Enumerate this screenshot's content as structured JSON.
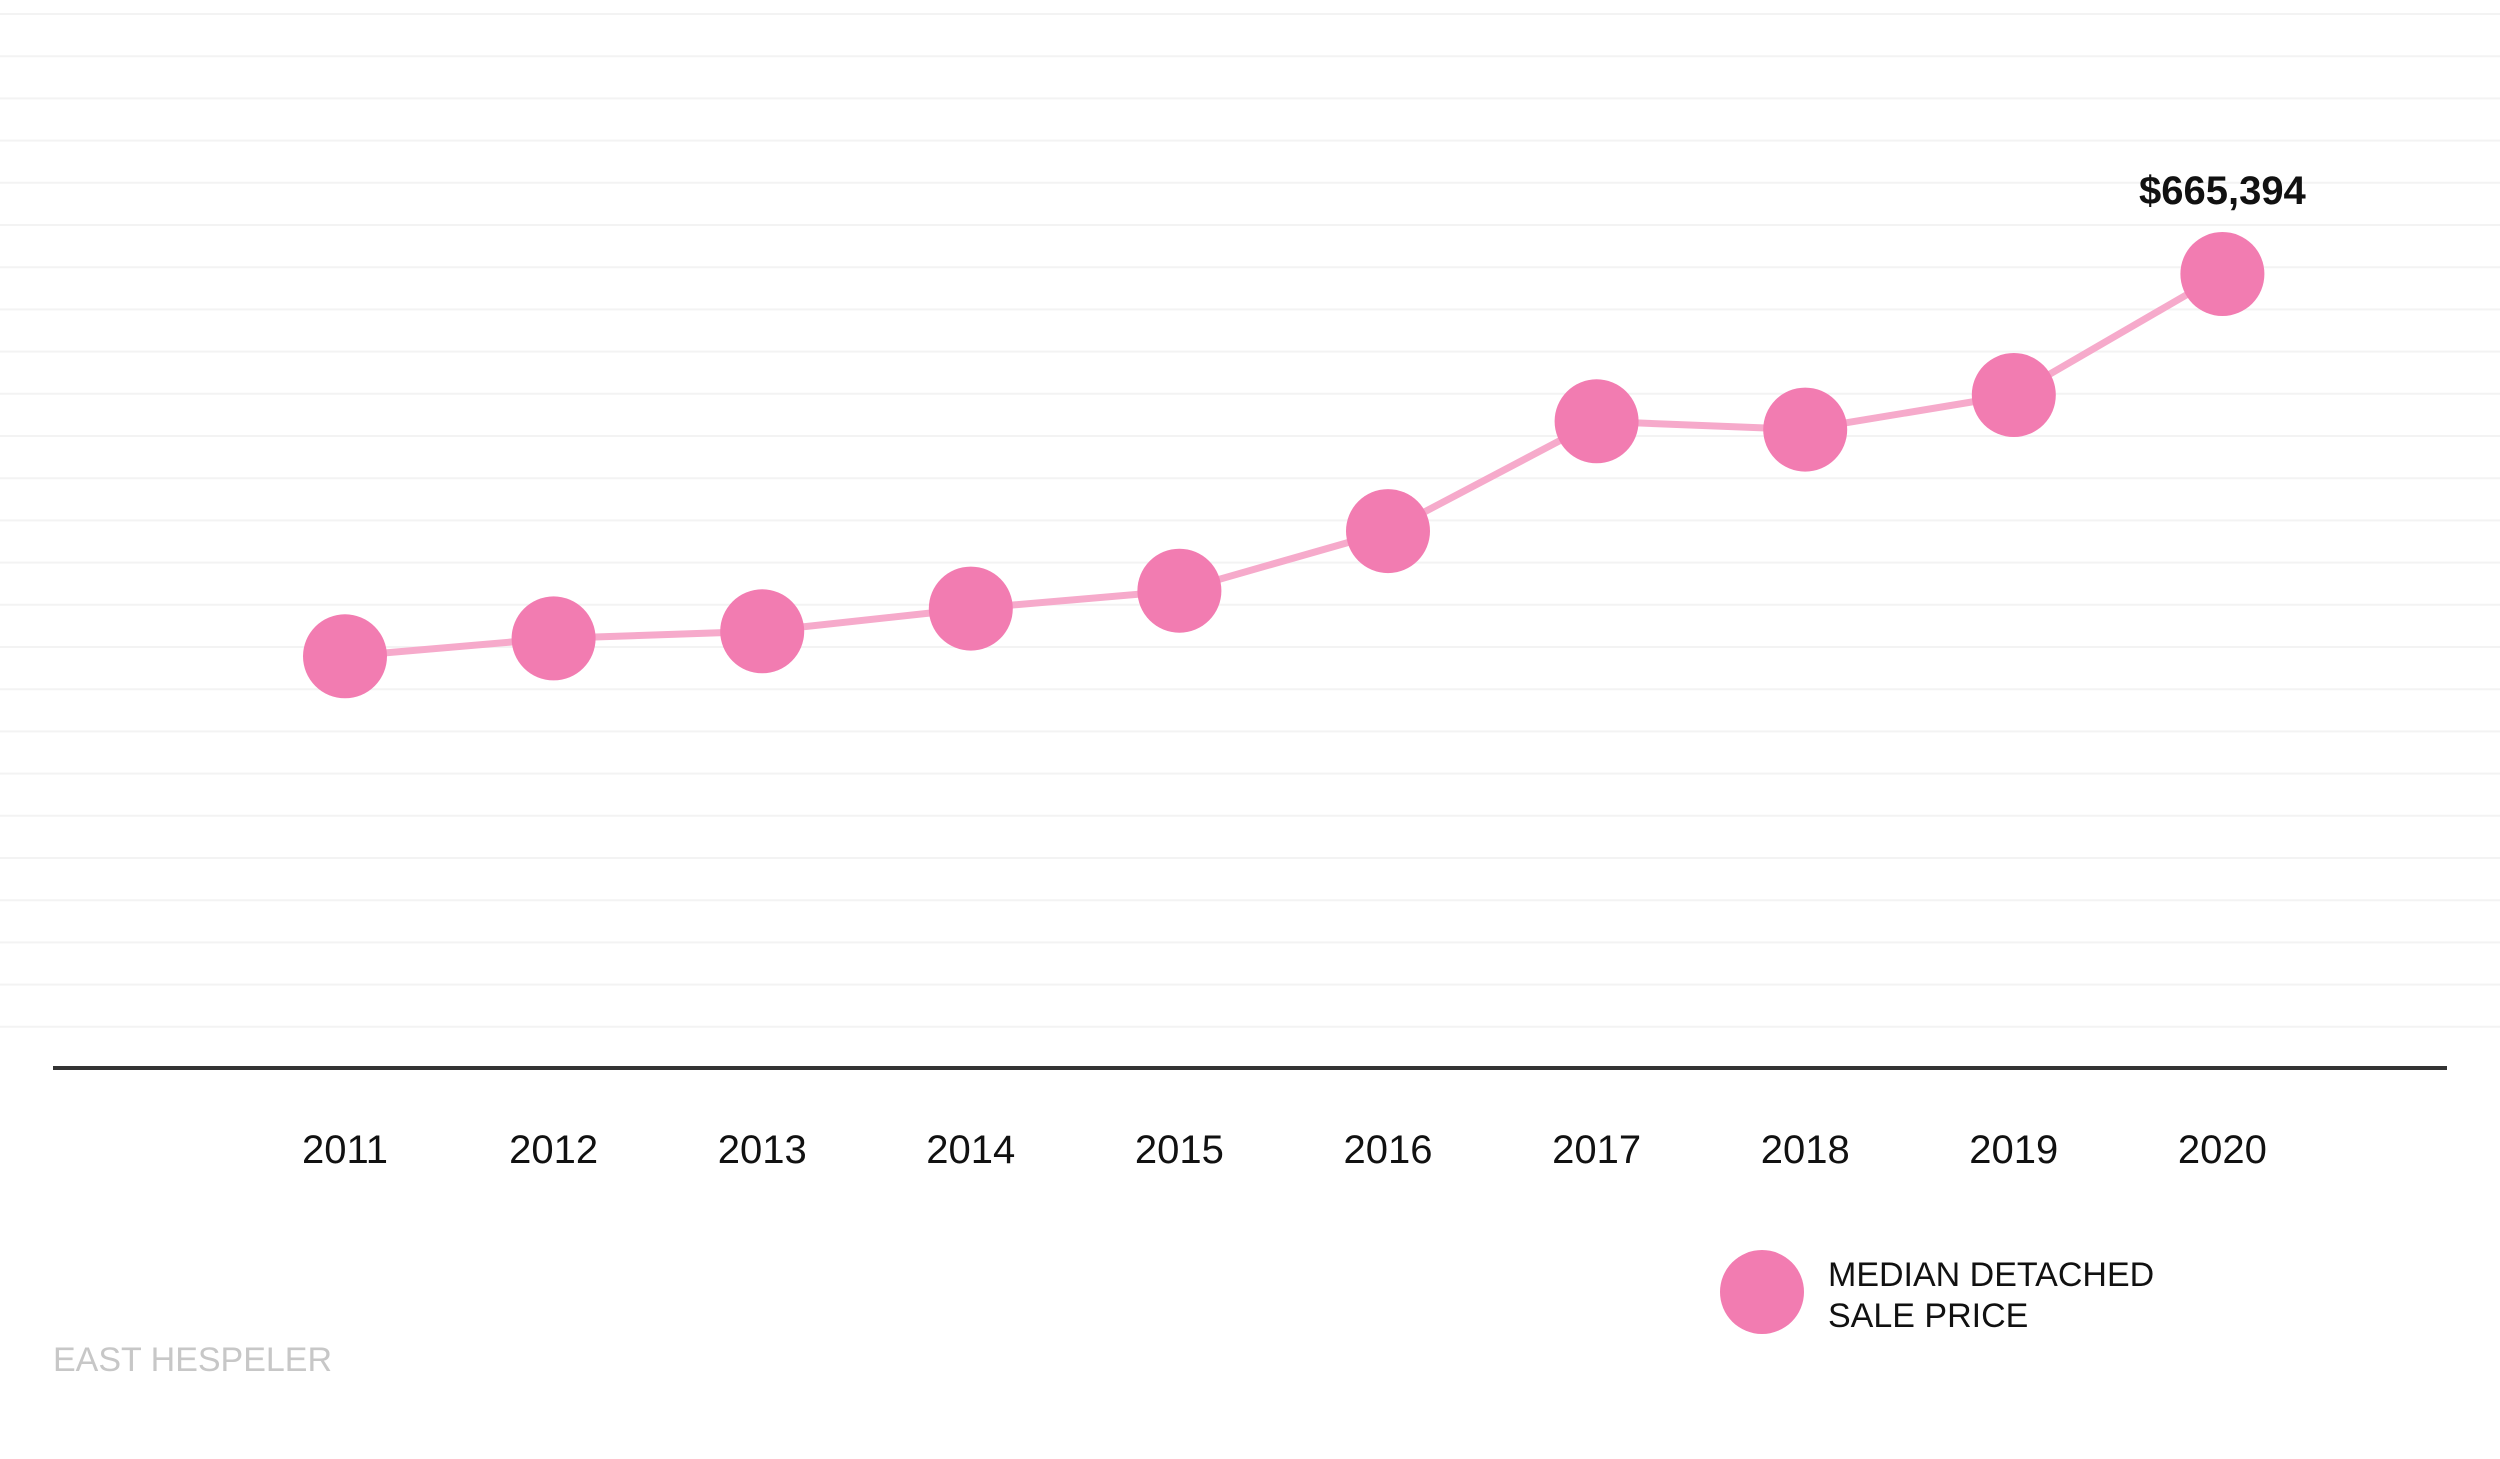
{
  "chart_data": {
    "type": "line",
    "x": [
      "2011",
      "2012",
      "2013",
      "2014",
      "2015",
      "2016",
      "2017",
      "2018",
      "2019",
      "2020"
    ],
    "series": [
      {
        "name": "MEDIAN DETACHED SALE PRICE",
        "values": [
          345000,
          360000,
          366000,
          385000,
          400000,
          450000,
          542000,
          535000,
          564000,
          665394
        ],
        "color": "#f27cb1",
        "line_color": "#f6aacb"
      }
    ],
    "data_labels": [
      {
        "x": "2020",
        "text": "$665,394"
      }
    ],
    "ylim": [
      0,
      885000
    ],
    "grid": true,
    "legend_position": "bottom-right",
    "legend": {
      "lines": [
        "MEDIAN DETACHED",
        "SALE PRICE"
      ]
    },
    "footer": "EAST HESPELER"
  }
}
